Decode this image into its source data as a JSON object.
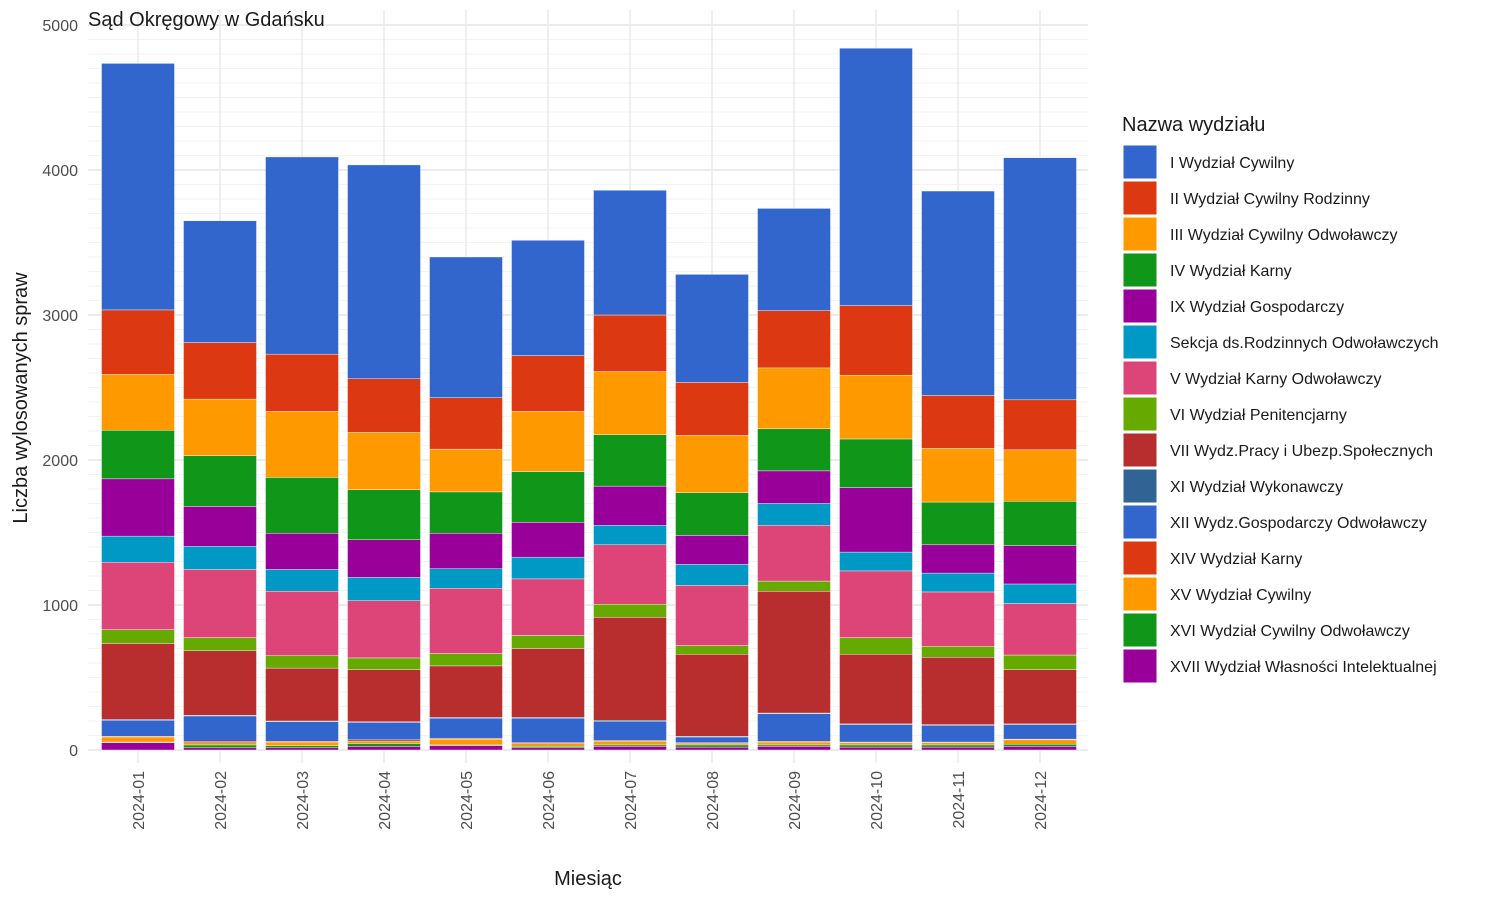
{
  "chart_data": {
    "type": "bar",
    "stacked": true,
    "title": "Sąd Okręgowy w Gdańsku",
    "xlabel": "Miesiąc",
    "ylabel": "Liczba wylosowanych spraw",
    "ylim": [
      0,
      5000
    ],
    "yticks": [
      0,
      1000,
      2000,
      3000,
      4000,
      5000
    ],
    "grid": true,
    "legend_position": "right",
    "legend_title": "Nazwa wydziału",
    "categories": [
      "2024-01",
      "2024-02",
      "2024-03",
      "2024-04",
      "2024-05",
      "2024-06",
      "2024-07",
      "2024-08",
      "2024-09",
      "2024-10",
      "2024-11",
      "2024-12"
    ],
    "series": [
      {
        "name": "I Wydział Cywilny",
        "color": "#3366CC",
        "values": [
          1700,
          840,
          1360,
          1475,
          970,
          795,
          860,
          745,
          705,
          1775,
          1410,
          1670
        ]
      },
      {
        "name": "II Wydział Cywilny Rodzinny",
        "color": "#DC3912",
        "values": [
          445,
          390,
          395,
          370,
          355,
          385,
          390,
          365,
          395,
          480,
          365,
          345
        ]
      },
      {
        "name": "III Wydział Cywilny Odwoławczy",
        "color": "#FF9900",
        "values": [
          385,
          390,
          455,
          395,
          295,
          415,
          435,
          395,
          420,
          440,
          370,
          355
        ]
      },
      {
        "name": "IV Wydział Karny",
        "color": "#109618",
        "values": [
          335,
          350,
          385,
          345,
          285,
          350,
          355,
          295,
          290,
          335,
          295,
          305
        ]
      },
      {
        "name": "IX Wydział Gospodarczy",
        "color": "#990099",
        "values": [
          395,
          275,
          250,
          260,
          245,
          240,
          270,
          200,
          225,
          445,
          195,
          265
        ]
      },
      {
        "name": "Sekcja ds.Rodzinnych Odwoławczych",
        "color": "#0099C6",
        "values": [
          180,
          160,
          150,
          160,
          135,
          150,
          135,
          145,
          150,
          130,
          130,
          135
        ]
      },
      {
        "name": "V Wydział Karny Odwoławczy",
        "color": "#DD4477",
        "values": [
          465,
          470,
          445,
          395,
          450,
          390,
          410,
          415,
          385,
          460,
          375,
          355
        ]
      },
      {
        "name": "VI Wydział Penitencjarny",
        "color": "#66AA00",
        "values": [
          95,
          90,
          85,
          80,
          85,
          90,
          90,
          60,
          70,
          115,
          75,
          100
        ]
      },
      {
        "name": "VII Wydz.Pracy i Ubezp.Społecznych",
        "color": "#B82E2E",
        "values": [
          525,
          445,
          365,
          360,
          355,
          475,
          710,
          565,
          840,
          480,
          465,
          375
        ]
      },
      {
        "name": "XI Wydział Wykonawczy",
        "color": "#316395",
        "values": [
          5,
          5,
          5,
          5,
          5,
          5,
          10,
          5,
          5,
          5,
          5,
          5
        ]
      },
      {
        "name": "XII Wydz.Gospodarczy Odwoławczy",
        "color": "#3366CC",
        "values": [
          110,
          175,
          135,
          120,
          140,
          170,
          130,
          40,
          190,
          120,
          115,
          100
        ]
      },
      {
        "name": "XIV Wydział Karny",
        "color": "#DC3912",
        "values": [
          5,
          10,
          5,
          10,
          5,
          5,
          5,
          5,
          5,
          5,
          5,
          5
        ]
      },
      {
        "name": "XV Wydział Cywilny",
        "color": "#FF9900",
        "values": [
          35,
          15,
          25,
          15,
          40,
          20,
          25,
          10,
          20,
          15,
          15,
          30
        ]
      },
      {
        "name": "XVI Wydział Cywilny Odwoławczy",
        "color": "#109618",
        "values": [
          5,
          20,
          15,
          20,
          5,
          10,
          10,
          15,
          10,
          15,
          15,
          15
        ]
      },
      {
        "name": "XVII Wydział Własności Intelektualnej",
        "color": "#990099",
        "values": [
          50,
          15,
          15,
          25,
          30,
          15,
          25,
          20,
          25,
          20,
          20,
          25
        ]
      }
    ]
  }
}
